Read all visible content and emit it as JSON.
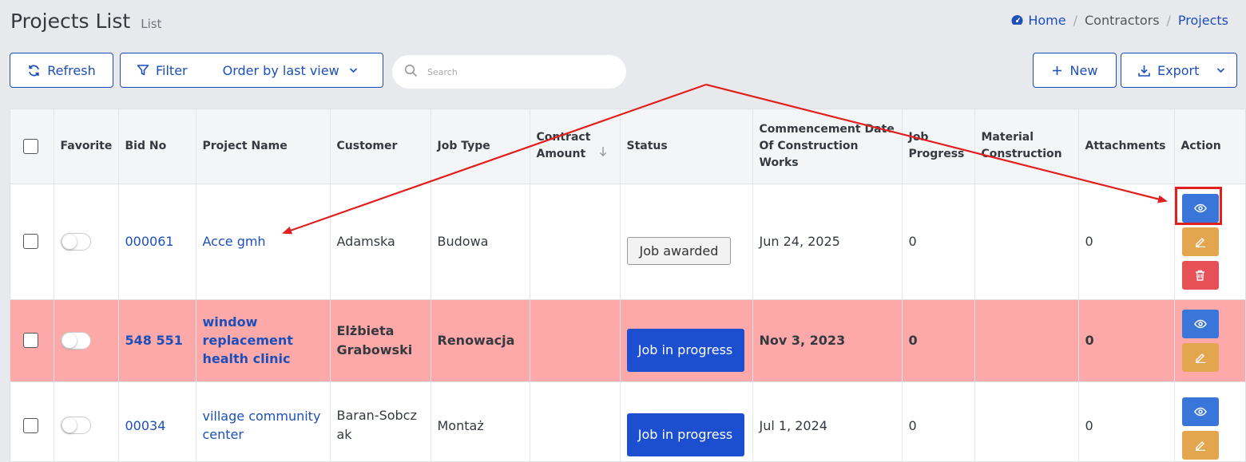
{
  "header": {
    "title": "Projects List",
    "subtitle": "List",
    "breadcrumb": [
      {
        "label": "Home"
      },
      {
        "label": "Contractors"
      },
      {
        "label": "Projects"
      }
    ]
  },
  "toolbar": {
    "refresh_label": "Refresh",
    "filter_label": "Filter",
    "order_label": "Order by last view",
    "search_placeholder": "Search",
    "new_label": "New",
    "export_label": "Export"
  },
  "table": {
    "columns": [
      "",
      "Favorite",
      "Bid No",
      "Project Name",
      "Customer",
      "Job Type",
      "Contract Amount",
      "Status",
      "Commencement Date Of Construction Works",
      "Job Progress",
      "Material Construction",
      "Attachments",
      "Action"
    ],
    "rows": [
      {
        "bid_no": "000061",
        "project_name": "Acce gmh",
        "customer": "Adamska",
        "job_type": "Budowa",
        "contract_amount": "",
        "status": "Job awarded",
        "commencement": "Jun 24, 2025",
        "job_progress": "0",
        "material": "",
        "attachments": "0"
      },
      {
        "bid_no": "548 551",
        "project_name": "window replacement health clinic",
        "customer": "Elżbieta Grabowski",
        "job_type": "Renowacja",
        "contract_amount": "",
        "status": "Job in progress",
        "commencement": "Nov 3, 2023",
        "job_progress": "0",
        "material": "",
        "attachments": "0"
      },
      {
        "bid_no": "00034",
        "project_name": "village community center",
        "customer": "Baran-Sobczak",
        "job_type": "Montaż",
        "contract_amount": "",
        "status": "Job in progress",
        "commencement": "Jul 1, 2024",
        "job_progress": "0",
        "material": "",
        "attachments": "0"
      }
    ]
  },
  "colors": {
    "accent": "#1c4fb8",
    "highlight_row": "#fea9a9",
    "annotation": "#e0201f"
  }
}
